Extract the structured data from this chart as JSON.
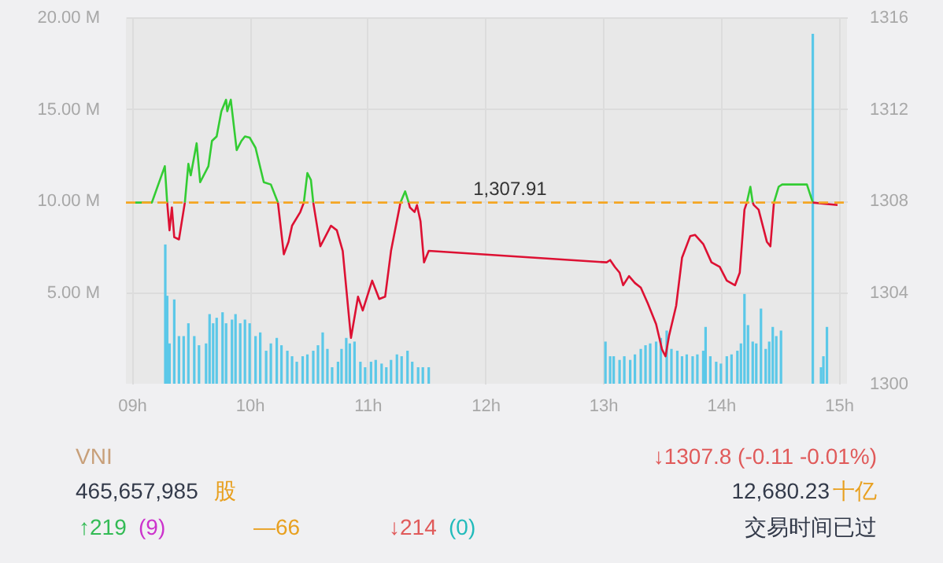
{
  "chart_data": {
    "type": "line",
    "xlim": [
      8.95,
      15.07
    ],
    "xticks": [
      {
        "value": 9,
        "label": "09h"
      },
      {
        "value": 10,
        "label": "10h"
      },
      {
        "value": 11,
        "label": "11h"
      },
      {
        "value": 12,
        "label": "12h"
      },
      {
        "value": 13,
        "label": "13h"
      },
      {
        "value": 14,
        "label": "14h"
      },
      {
        "value": 15,
        "label": "15h"
      }
    ],
    "ylim": [
      0,
      20
    ],
    "yticks": [
      {
        "value": 5,
        "label": "5.00 M"
      },
      {
        "value": 10,
        "label": "10.00 M"
      },
      {
        "value": 15,
        "label": "15.00 M"
      },
      {
        "value": 20,
        "label": "20.00 M"
      }
    ],
    "y2lim": [
      1300,
      1316
    ],
    "y2ticks": [
      1300,
      1304,
      1308,
      1312,
      1316
    ],
    "grid": true,
    "series": [
      {
        "type": "bar",
        "color": "#5bc8e8",
        "x": [
          9.284,
          9.3,
          9.32,
          9.36,
          9.4,
          9.44,
          9.48,
          9.53,
          9.57,
          9.63,
          9.66,
          9.69,
          9.72,
          9.77,
          9.8,
          9.85,
          9.88,
          9.92,
          9.96,
          10.0,
          10.05,
          10.09,
          10.14,
          10.18,
          10.23,
          10.27,
          10.32,
          10.36,
          10.4,
          10.45,
          10.49,
          10.54,
          10.58,
          10.62,
          10.66,
          10.7,
          10.75,
          10.78,
          10.82,
          10.85,
          10.89,
          10.94,
          10.98,
          11.03,
          11.07,
          11.12,
          11.16,
          11.2,
          11.25,
          11.29,
          11.34,
          11.38,
          11.43,
          11.47,
          11.52,
          13.02,
          13.06,
          13.09,
          13.14,
          13.18,
          13.23,
          13.27,
          13.32,
          13.36,
          13.4,
          13.45,
          13.49,
          13.54,
          13.58,
          13.63,
          13.67,
          13.71,
          13.76,
          13.8,
          13.85,
          13.87,
          13.91,
          13.96,
          14.0,
          14.05,
          14.09,
          14.14,
          14.17,
          14.2,
          14.23,
          14.27,
          14.3,
          14.34,
          14.38,
          14.41,
          14.44,
          14.47,
          14.51,
          14.78,
          14.85,
          14.87,
          14.9
        ],
        "values": [
          7.6,
          4.8,
          2.2,
          4.6,
          2.6,
          2.6,
          3.3,
          2.6,
          2.1,
          2.2,
          3.8,
          3.3,
          3.6,
          3.9,
          3.3,
          3.5,
          3.8,
          3.3,
          3.5,
          3.3,
          2.6,
          2.8,
          1.8,
          2.2,
          2.5,
          2.1,
          1.8,
          1.5,
          1.2,
          1.5,
          1.6,
          1.8,
          2.1,
          2.8,
          1.9,
          0.9,
          1.2,
          1.9,
          2.5,
          2.2,
          2.3,
          1.2,
          0.9,
          1.2,
          1.3,
          1.1,
          0.9,
          1.3,
          1.6,
          1.5,
          1.8,
          1.2,
          0.9,
          0.9,
          0.9,
          2.3,
          1.5,
          1.5,
          1.3,
          1.5,
          1.3,
          1.6,
          1.9,
          2.1,
          2.2,
          2.3,
          2.5,
          2.9,
          1.9,
          1.8,
          1.5,
          1.6,
          1.5,
          1.6,
          1.8,
          3.1,
          1.5,
          1.2,
          1.1,
          1.5,
          1.6,
          1.8,
          2.2,
          4.9,
          3.2,
          2.3,
          2.2,
          4.1,
          1.9,
          2.3,
          3.1,
          2.6,
          2.9,
          19.1,
          0.9,
          1.5,
          3.1
        ]
      },
      {
        "axis": "y2",
        "color": "#33cc33",
        "x": [
          9.03,
          9.17,
          9.28,
          9.3,
          9.32,
          9.45,
          9.48,
          9.5,
          9.55,
          9.58,
          9.65,
          9.68,
          9.72,
          9.76,
          9.8,
          9.81,
          9.84,
          9.89,
          9.93,
          9.96,
          10.0,
          10.05,
          10.12,
          10.18,
          10.24,
          10.29,
          10.46,
          10.49,
          10.52,
          10.54,
          10.6,
          11.28,
          11.32,
          11.35,
          11.36,
          14.22,
          14.25,
          14.27,
          14.28,
          14.45,
          14.49,
          14.52,
          14.73,
          14.78
        ],
        "values": [
          1307.91,
          1307.91,
          1309.5,
          1307.91,
          null,
          1307.91,
          1309.6,
          1309.1,
          1310.5,
          1308.8,
          1309.5,
          1310.6,
          1310.8,
          1311.9,
          1312.4,
          1311.9,
          1312.4,
          1310.2,
          1310.6,
          1310.8,
          1310.75,
          1310.3,
          1308.8,
          1308.7,
          1307.91,
          null,
          1307.91,
          1309.2,
          1308.9,
          1307.91,
          null,
          1307.91,
          1308.4,
          1307.91,
          null,
          1307.91,
          1308.6,
          1307.91,
          null,
          1307.91,
          1308.6,
          1308.7,
          1308.7,
          1307.91
        ]
      },
      {
        "axis": "y2",
        "color": "#dd1133",
        "x": [
          9.3,
          9.32,
          9.34,
          9.36,
          9.4,
          9.45,
          9.48,
          10.24,
          10.29,
          10.33,
          10.36,
          10.43,
          10.46,
          10.49,
          10.54,
          10.6,
          10.69,
          10.74,
          10.79,
          10.86,
          10.92,
          10.96,
          11.04,
          11.1,
          11.15,
          11.2,
          11.28,
          11.32,
          11.35,
          11.36,
          11.4,
          11.42,
          11.45,
          11.48,
          11.52,
          13.03,
          13.06,
          13.1,
          13.14,
          13.17,
          13.22,
          13.27,
          13.32,
          13.38,
          13.45,
          13.5,
          13.53,
          13.56,
          13.62,
          13.67,
          13.74,
          13.78,
          13.85,
          13.92,
          13.99,
          14.05,
          14.12,
          14.16,
          14.2,
          14.22,
          14.25,
          14.27,
          14.28,
          14.32,
          14.39,
          14.42,
          14.45,
          14.49,
          14.78,
          14.99
        ],
        "values": [
          1307.91,
          1306.7,
          1307.7,
          1306.4,
          1306.3,
          1307.91,
          null,
          1307.91,
          1305.65,
          1306.2,
          1306.9,
          1307.5,
          1307.91,
          null,
          1307.91,
          1306.0,
          1306.9,
          1306.7,
          1305.8,
          1302.0,
          1303.8,
          1303.2,
          1304.5,
          1303.7,
          1303.8,
          1305.8,
          1307.91,
          null,
          1307.91,
          1307.7,
          1307.5,
          1307.8,
          1307.1,
          1305.3,
          1305.8,
          1305.3,
          1305.4,
          1305.1,
          1304.85,
          1304.3,
          1304.7,
          1304.4,
          1304.2,
          1303.5,
          1302.6,
          1301.5,
          1301.2,
          1302.1,
          1303.4,
          1305.5,
          1306.45,
          1306.5,
          1306.1,
          1305.3,
          1305.1,
          1304.5,
          1304.3,
          1304.85,
          1307.6,
          1307.91,
          null,
          1307.91,
          1307.8,
          1307.6,
          1306.2,
          1306.0,
          1307.91,
          null,
          1307.91,
          1307.8
        ]
      }
    ],
    "ref_lines": [
      {
        "axis": "y2",
        "value": 1307.91,
        "label": "1,307.91",
        "color": "#f5a623",
        "line_style": "dashed"
      }
    ],
    "annotations": [
      "VNI",
      "↓1307.8  (-0.11  -0.01%)",
      "465,657,985",
      "股",
      "12,680.23",
      "十亿",
      "↑219",
      "(9)",
      "—66",
      "↓214",
      "(0)",
      "交易时间已过"
    ]
  }
}
